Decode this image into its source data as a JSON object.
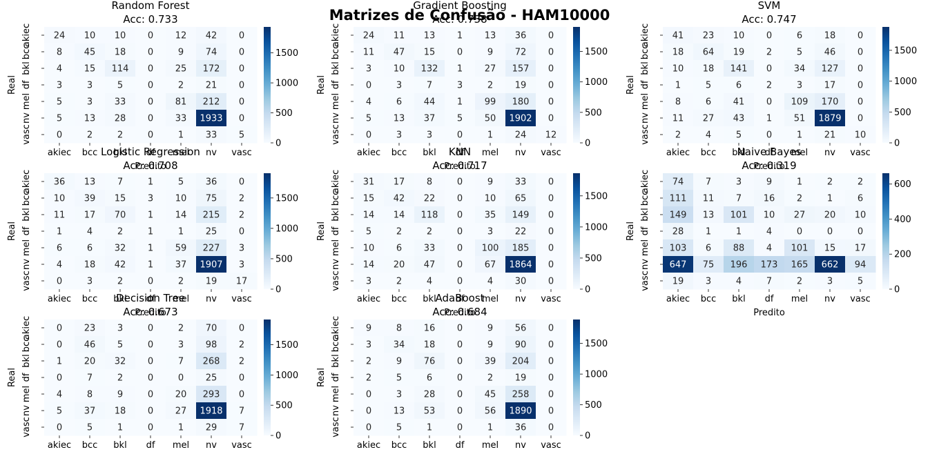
{
  "suptitle": "Matrizes de Confusão - HAM10000",
  "chart_data": [
    {
      "type": "heatmap",
      "title": "Random Forest\nAcc: 0.733",
      "xlabel": "Predito",
      "ylabel": "Real",
      "x_categories": [
        "akiec",
        "bcc",
        "bkl",
        "df",
        "mel",
        "nv",
        "vasc"
      ],
      "y_categories": [
        "akiec",
        "bcc",
        "bkl",
        "df",
        "mel",
        "nv",
        "vasc"
      ],
      "matrix": [
        [
          24,
          10,
          10,
          0,
          12,
          42,
          0
        ],
        [
          8,
          45,
          18,
          0,
          9,
          74,
          0
        ],
        [
          4,
          15,
          114,
          0,
          25,
          172,
          0
        ],
        [
          3,
          3,
          5,
          0,
          2,
          21,
          0
        ],
        [
          5,
          3,
          33,
          0,
          81,
          212,
          0
        ],
        [
          5,
          13,
          28,
          0,
          33,
          1933,
          0
        ],
        [
          0,
          2,
          2,
          0,
          1,
          33,
          5
        ]
      ],
      "vmax": 1933,
      "colorbar_ticks": [
        0,
        500,
        1000,
        1500
      ],
      "colormap": "Blues"
    },
    {
      "type": "heatmap",
      "title": "Gradient Boosting\nAcc: 0.738",
      "xlabel": "Predito",
      "ylabel": "Real",
      "x_categories": [
        "akiec",
        "bcc",
        "bkl",
        "df",
        "mel",
        "nv",
        "vasc"
      ],
      "y_categories": [
        "akiec",
        "bcc",
        "bkl",
        "df",
        "mel",
        "nv",
        "vasc"
      ],
      "matrix": [
        [
          24,
          11,
          13,
          1,
          13,
          36,
          0
        ],
        [
          11,
          47,
          15,
          0,
          9,
          72,
          0
        ],
        [
          3,
          10,
          132,
          1,
          27,
          157,
          0
        ],
        [
          0,
          3,
          7,
          3,
          2,
          19,
          0
        ],
        [
          4,
          6,
          44,
          1,
          99,
          180,
          0
        ],
        [
          5,
          13,
          37,
          5,
          50,
          1902,
          0
        ],
        [
          0,
          3,
          3,
          0,
          1,
          24,
          12
        ]
      ],
      "vmax": 1902,
      "colorbar_ticks": [
        0,
        500,
        1000,
        1500
      ],
      "colormap": "Blues"
    },
    {
      "type": "heatmap",
      "title": "SVM\nAcc: 0.747",
      "xlabel": "Predito",
      "ylabel": "Real",
      "x_categories": [
        "akiec",
        "bcc",
        "bkl",
        "df",
        "mel",
        "nv",
        "vasc"
      ],
      "y_categories": [
        "akiec",
        "bcc",
        "bkl",
        "df",
        "mel",
        "nv",
        "vasc"
      ],
      "matrix": [
        [
          41,
          23,
          10,
          0,
          6,
          18,
          0
        ],
        [
          18,
          64,
          19,
          2,
          5,
          46,
          0
        ],
        [
          10,
          18,
          141,
          0,
          34,
          127,
          0
        ],
        [
          1,
          5,
          6,
          2,
          3,
          17,
          0
        ],
        [
          8,
          6,
          41,
          0,
          109,
          170,
          0
        ],
        [
          11,
          27,
          43,
          1,
          51,
          1879,
          0
        ],
        [
          2,
          4,
          5,
          0,
          1,
          21,
          10
        ]
      ],
      "vmax": 1879,
      "colorbar_ticks": [
        0,
        500,
        1000,
        1500
      ],
      "colormap": "Blues"
    },
    {
      "type": "heatmap",
      "title": "Logistic Regression\nAcc: 0.708",
      "xlabel": "Predito",
      "ylabel": "Real",
      "x_categories": [
        "akiec",
        "bcc",
        "bkl",
        "df",
        "mel",
        "nv",
        "vasc"
      ],
      "y_categories": [
        "akiec",
        "bcc",
        "bkl",
        "df",
        "mel",
        "nv",
        "vasc"
      ],
      "matrix": [
        [
          36,
          13,
          7,
          1,
          5,
          36,
          0
        ],
        [
          10,
          39,
          15,
          3,
          10,
          75,
          2
        ],
        [
          11,
          17,
          70,
          1,
          14,
          215,
          2
        ],
        [
          1,
          4,
          2,
          1,
          1,
          25,
          0
        ],
        [
          6,
          6,
          32,
          1,
          59,
          227,
          3
        ],
        [
          4,
          18,
          42,
          1,
          37,
          1907,
          3
        ],
        [
          0,
          3,
          2,
          0,
          2,
          19,
          17
        ]
      ],
      "vmax": 1907,
      "colorbar_ticks": [
        0,
        500,
        1000,
        1500
      ],
      "colormap": "Blues"
    },
    {
      "type": "heatmap",
      "title": "KNN\nAcc: 0.717",
      "xlabel": "Predito",
      "ylabel": "Real",
      "x_categories": [
        "akiec",
        "bcc",
        "bkl",
        "df",
        "mel",
        "nv",
        "vasc"
      ],
      "y_categories": [
        "akiec",
        "bcc",
        "bkl",
        "df",
        "mel",
        "nv",
        "vasc"
      ],
      "matrix": [
        [
          31,
          17,
          8,
          0,
          9,
          33,
          0
        ],
        [
          15,
          42,
          22,
          0,
          10,
          65,
          0
        ],
        [
          14,
          14,
          118,
          0,
          35,
          149,
          0
        ],
        [
          5,
          2,
          2,
          0,
          3,
          22,
          0
        ],
        [
          10,
          6,
          33,
          0,
          100,
          185,
          0
        ],
        [
          14,
          20,
          47,
          0,
          67,
          1864,
          0
        ],
        [
          3,
          2,
          4,
          0,
          4,
          30,
          0
        ]
      ],
      "vmax": 1864,
      "colorbar_ticks": [
        0,
        500,
        1000,
        1500
      ],
      "colormap": "Blues"
    },
    {
      "type": "heatmap",
      "title": "Naive Bayes\nAcc: 0.319",
      "xlabel": "Predito",
      "ylabel": "Real",
      "x_categories": [
        "akiec",
        "bcc",
        "bkl",
        "df",
        "mel",
        "nv",
        "vasc"
      ],
      "y_categories": [
        "akiec",
        "bcc",
        "bkl",
        "df",
        "mel",
        "nv",
        "vasc"
      ],
      "matrix": [
        [
          74,
          7,
          3,
          9,
          1,
          2,
          2
        ],
        [
          111,
          11,
          7,
          16,
          2,
          1,
          6
        ],
        [
          149,
          13,
          101,
          10,
          27,
          20,
          10
        ],
        [
          28,
          1,
          1,
          4,
          0,
          0,
          0
        ],
        [
          103,
          6,
          88,
          4,
          101,
          15,
          17
        ],
        [
          647,
          75,
          196,
          173,
          165,
          662,
          94
        ],
        [
          19,
          3,
          4,
          7,
          2,
          3,
          5
        ]
      ],
      "vmax": 662,
      "colorbar_ticks": [
        0,
        200,
        400,
        600
      ],
      "colormap": "Blues"
    },
    {
      "type": "heatmap",
      "title": "Decision Tree\nAcc: 0.673",
      "xlabel": "Predito",
      "ylabel": "Real",
      "x_categories": [
        "akiec",
        "bcc",
        "bkl",
        "df",
        "mel",
        "nv",
        "vasc"
      ],
      "y_categories": [
        "akiec",
        "bcc",
        "bkl",
        "df",
        "mel",
        "nv",
        "vasc"
      ],
      "matrix": [
        [
          0,
          23,
          3,
          0,
          2,
          70,
          0
        ],
        [
          0,
          46,
          5,
          0,
          3,
          98,
          2
        ],
        [
          1,
          20,
          32,
          0,
          7,
          268,
          2
        ],
        [
          0,
          7,
          2,
          0,
          0,
          25,
          0
        ],
        [
          4,
          8,
          9,
          0,
          20,
          293,
          0
        ],
        [
          5,
          37,
          18,
          0,
          27,
          1918,
          7
        ],
        [
          0,
          5,
          1,
          0,
          1,
          29,
          7
        ]
      ],
      "vmax": 1918,
      "colorbar_ticks": [
        0,
        500,
        1000,
        1500
      ],
      "colormap": "Blues"
    },
    {
      "type": "heatmap",
      "title": "AdaBoost\nAcc: 0.684",
      "xlabel": "Predito",
      "ylabel": "Real",
      "x_categories": [
        "akiec",
        "bcc",
        "bkl",
        "df",
        "mel",
        "nv",
        "vasc"
      ],
      "y_categories": [
        "akiec",
        "bcc",
        "bkl",
        "df",
        "mel",
        "nv",
        "vasc"
      ],
      "matrix": [
        [
          9,
          8,
          16,
          0,
          9,
          56,
          0
        ],
        [
          3,
          34,
          18,
          0,
          9,
          90,
          0
        ],
        [
          2,
          9,
          76,
          0,
          39,
          204,
          0
        ],
        [
          2,
          5,
          6,
          0,
          2,
          19,
          0
        ],
        [
          0,
          3,
          28,
          0,
          45,
          258,
          0
        ],
        [
          0,
          13,
          53,
          0,
          56,
          1890,
          0
        ],
        [
          0,
          5,
          1,
          0,
          1,
          36,
          0
        ]
      ],
      "vmax": 1890,
      "colorbar_ticks": [
        0,
        500,
        1000,
        1500
      ],
      "colormap": "Blues"
    }
  ]
}
